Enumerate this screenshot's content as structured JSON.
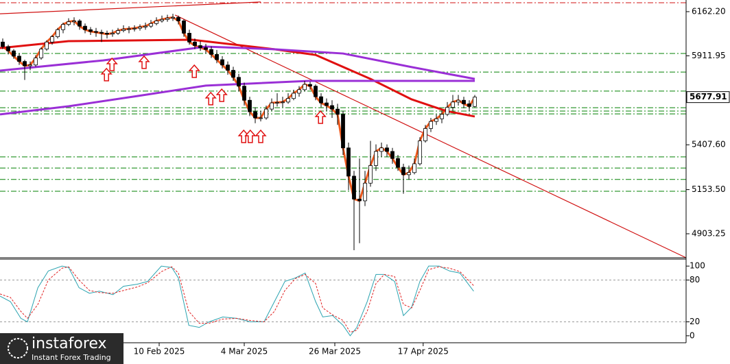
{
  "chart_data": {
    "type": "candlestick",
    "xlim": [
      -0.5,
      124.5
    ],
    "ylim": [
      4767.3,
      6228.3
    ],
    "yticks": [
      {
        "value": 6162.2,
        "label": "6162.20"
      },
      5911.95,
      {
        "value": 5407.6,
        "label": "5407.60"
      },
      {
        "value": 5153.5,
        "label": "5153.50"
      },
      4903.25
    ],
    "xticks": [
      {
        "value": 28.5,
        "label": "10 Feb 2025"
      },
      {
        "value": 44,
        "label": "4 Mar 2025"
      },
      {
        "value": 60.5,
        "label": "26 Mar 2025"
      },
      {
        "value": 76.6,
        "label": "17 Apr 2025"
      }
    ],
    "last_price": 5677.91,
    "candles": [
      [
        5990,
        6010,
        5950,
        5964
      ],
      [
        5964,
        5975,
        5920,
        5940
      ],
      [
        5940,
        5950,
        5895,
        5910
      ],
      [
        5910,
        5925,
        5860,
        5880
      ],
      [
        5880,
        5890,
        5775,
        5855
      ],
      [
        5855,
        5880,
        5830,
        5860
      ],
      [
        5860,
        5915,
        5850,
        5900
      ],
      [
        5900,
        5960,
        5890,
        5950
      ],
      [
        5950,
        6000,
        5940,
        5990
      ],
      [
        5990,
        6030,
        5975,
        6020
      ],
      [
        6020,
        6070,
        6010,
        6060
      ],
      [
        6060,
        6100,
        6040,
        6090
      ],
      [
        6090,
        6125,
        6080,
        6105
      ],
      [
        6105,
        6130,
        6085,
        6110
      ],
      [
        6110,
        6120,
        6060,
        6080
      ],
      [
        6080,
        6095,
        6040,
        6060
      ],
      [
        6060,
        6075,
        6030,
        6050
      ],
      [
        6050,
        6070,
        6020,
        6045
      ],
      [
        6045,
        6060,
        5990,
        6040
      ],
      [
        6040,
        6055,
        6010,
        6035
      ],
      [
        6035,
        6060,
        6020,
        6040
      ],
      [
        6040,
        6070,
        6030,
        6055
      ],
      [
        6055,
        6085,
        6045,
        6062
      ],
      [
        6062,
        6080,
        6040,
        6065
      ],
      [
        6065,
        6085,
        6050,
        6068
      ],
      [
        6068,
        6090,
        6055,
        6075
      ],
      [
        6075,
        6100,
        6060,
        6080
      ],
      [
        6080,
        6115,
        6070,
        6095
      ],
      [
        6095,
        6130,
        6085,
        6110
      ],
      [
        6110,
        6140,
        6100,
        6118
      ],
      [
        6118,
        6145,
        6105,
        6125
      ],
      [
        6125,
        6150,
        6110,
        6130
      ],
      [
        6130,
        6140,
        6090,
        6110
      ],
      [
        6110,
        6120,
        6020,
        6040
      ],
      [
        6040,
        6060,
        5975,
        5990
      ],
      [
        5990,
        6010,
        5950,
        5970
      ],
      [
        5970,
        5995,
        5940,
        5958
      ],
      [
        5958,
        5980,
        5925,
        5948
      ],
      [
        5948,
        5965,
        5900,
        5920
      ],
      [
        5920,
        5945,
        5870,
        5890
      ],
      [
        5890,
        5910,
        5840,
        5860
      ],
      [
        5860,
        5880,
        5805,
        5830
      ],
      [
        5830,
        5850,
        5770,
        5790
      ],
      [
        5790,
        5810,
        5710,
        5740
      ],
      [
        5740,
        5760,
        5630,
        5660
      ],
      [
        5660,
        5680,
        5570,
        5595
      ],
      [
        5595,
        5620,
        5530,
        5560
      ],
      [
        5560,
        5600,
        5540,
        5560
      ],
      [
        5560,
        5630,
        5550,
        5610
      ],
      [
        5610,
        5670,
        5600,
        5645
      ],
      [
        5645,
        5700,
        5625,
        5648
      ],
      [
        5648,
        5680,
        5620,
        5650
      ],
      [
        5650,
        5700,
        5640,
        5670
      ],
      [
        5670,
        5720,
        5660,
        5700
      ],
      [
        5700,
        5740,
        5680,
        5720
      ],
      [
        5720,
        5770,
        5710,
        5750
      ],
      [
        5750,
        5765,
        5720,
        5740
      ],
      [
        5740,
        5750,
        5660,
        5680
      ],
      [
        5680,
        5700,
        5620,
        5645
      ],
      [
        5645,
        5670,
        5600,
        5630
      ],
      [
        5630,
        5660,
        5560,
        5610
      ],
      [
        5610,
        5640,
        5520,
        5580
      ],
      [
        5580,
        5600,
        5350,
        5390
      ],
      [
        5390,
        5420,
        5150,
        5230
      ],
      [
        5230,
        5260,
        4810,
        5100
      ],
      [
        5100,
        5330,
        4850,
        5090
      ],
      [
        5090,
        5260,
        5060,
        5190
      ],
      [
        5190,
        5430,
        5170,
        5290
      ],
      [
        5290,
        5410,
        5260,
        5370
      ],
      [
        5370,
        5420,
        5340,
        5390
      ],
      [
        5390,
        5410,
        5340,
        5370
      ],
      [
        5370,
        5390,
        5300,
        5330
      ],
      [
        5330,
        5350,
        5260,
        5280
      ],
      [
        5280,
        5300,
        5130,
        5238
      ],
      [
        5238,
        5290,
        5210,
        5250
      ],
      [
        5250,
        5330,
        5240,
        5300
      ],
      [
        5300,
        5450,
        5290,
        5430
      ],
      [
        5430,
        5520,
        5420,
        5500
      ],
      [
        5500,
        5560,
        5480,
        5540
      ],
      [
        5540,
        5580,
        5520,
        5555
      ],
      [
        5555,
        5600,
        5530,
        5580
      ],
      [
        5580,
        5650,
        5570,
        5620
      ],
      [
        5620,
        5690,
        5600,
        5650
      ],
      [
        5650,
        5690,
        5630,
        5660
      ],
      [
        5660,
        5680,
        5615,
        5640
      ],
      [
        5640,
        5660,
        5600,
        5625
      ],
      [
        5625,
        5690,
        5620,
        5677.91
      ]
    ],
    "lines": [
      {
        "color": "#ee5a1e",
        "values": [
          5964,
          5940,
          5910,
          5880,
          5855,
          5860,
          5900,
          5950,
          5990,
          6020,
          6060,
          6090,
          6105,
          6110,
          6080,
          6060,
          6050,
          6045,
          6040,
          6035,
          6040,
          6055,
          6062,
          6065,
          6068,
          6075,
          6080,
          6095,
          6110,
          6118,
          6125,
          6130,
          6110,
          6040,
          5990,
          5970,
          5958,
          5948,
          5920,
          5890,
          5860,
          5830,
          5790,
          5740,
          5660,
          5595,
          5560,
          5560,
          5610,
          5645,
          5648,
          5650,
          5670,
          5700,
          5720,
          5750,
          5740,
          5680,
          5645,
          5630,
          5610,
          5580,
          5390,
          5230,
          5100,
          5090,
          5190,
          5290,
          5370,
          5390,
          5370,
          5330,
          5280,
          5238,
          5250,
          5300,
          5430,
          5500,
          5540,
          5555,
          5580,
          5620,
          5650,
          5660,
          5640,
          5625,
          5678
        ]
      },
      {
        "color": "#e01010",
        "x": [
          -0.5,
          12,
          34.5,
          49.5,
          57,
          67,
          74.5,
          80.8,
          86
        ],
        "values": [
          5956,
          5995,
          6003,
          5949,
          5917,
          5781,
          5665,
          5599,
          5568
        ]
      },
      {
        "color": "#9a2fd6",
        "x": [
          -0.5,
          18.3,
          37,
          49.5,
          62,
          74.5,
          86
        ],
        "values": [
          5828,
          5886,
          5964,
          5949,
          5925,
          5848,
          5781
        ]
      },
      {
        "color": "#9a2fd6",
        "x": [
          -0.5,
          12,
          24.5,
          37,
          55.8,
          74.5,
          86
        ],
        "values": [
          5580,
          5626,
          5684,
          5743,
          5770,
          5770,
          5770
        ]
      }
    ],
    "trend_lines": [
      {
        "color": "#d01010",
        "x": [
          31.4,
          124.5
        ],
        "values": [
          6143,
          4767.3
        ]
      },
      {
        "color": "#d01010",
        "x": [
          -0.5,
          47
        ],
        "values": [
          6150,
          6217
        ]
      }
    ],
    "levels": [
      {
        "value": 6213,
        "color": "#d01010"
      },
      {
        "value": 5925,
        "color": "#008000"
      },
      {
        "value": 5820,
        "color": "#008000"
      },
      {
        "value": 5712,
        "color": "#008000"
      },
      {
        "value": 5618,
        "color": "#008000"
      },
      {
        "value": 5599,
        "color": "#008000"
      },
      {
        "value": 5583,
        "color": "#008000"
      },
      {
        "value": 5339,
        "color": "#008000"
      },
      {
        "value": 5276,
        "color": "#008000"
      },
      {
        "value": 5211,
        "color": "#008000"
      },
      {
        "value": 5144,
        "color": "#008000"
      }
    ],
    "signals": [
      {
        "x": 18.9,
        "price": 5840
      },
      {
        "x": 19.9,
        "price": 5898
      },
      {
        "x": 25.75,
        "price": 5910
      },
      {
        "x": 34.9,
        "price": 5859
      },
      {
        "x": 37.9,
        "price": 5704
      },
      {
        "x": 39.9,
        "price": 5723
      },
      {
        "x": 43.9,
        "price": 5490
      },
      {
        "x": 45.1,
        "price": 5490
      },
      {
        "x": 47,
        "price": 5490
      },
      {
        "x": 57.9,
        "price": 5599
      }
    ],
    "oscillator": {
      "ylim": [
        -10,
        110
      ],
      "yticks": [
        100,
        80,
        20,
        0
      ],
      "levels": [
        80,
        20
      ],
      "x": [
        -0.5,
        1.4,
        3.3,
        4.5,
        6.4,
        8.3,
        10.8,
        12,
        13.9,
        15.8,
        17.6,
        20.1,
        22,
        24.5,
        26.4,
        28.9,
        30.8,
        32,
        33.9,
        35.8,
        37.6,
        40.1,
        42.6,
        45.1,
        47.6,
        49.5,
        51.4,
        53.3,
        55.1,
        57,
        58.3,
        60.1,
        62,
        63.3,
        64.5,
        66.4,
        68,
        69.5,
        71.4,
        73,
        74.5,
        76,
        77.6,
        79.5,
        81.4,
        83.3,
        85.8
      ],
      "series": [
        {
          "color": "#2aa3b0",
          "dashed": false,
          "values": [
            57,
            49,
            25,
            20,
            69,
            93,
            100,
            98,
            69,
            61,
            64,
            59,
            71,
            74,
            78,
            100,
            98,
            83,
            15,
            12,
            20,
            27,
            25,
            20,
            20,
            49,
            78,
            83,
            90,
            49,
            27,
            29,
            15,
            0,
            12,
            49,
            88,
            88,
            78,
            29,
            41,
            78,
            100,
            100,
            93,
            90,
            64
          ]
        },
        {
          "color": "#e02020",
          "dashed": true,
          "values": [
            60,
            55,
            35,
            25,
            45,
            80,
            97,
            99,
            80,
            65,
            62,
            61,
            65,
            70,
            76,
            92,
            99,
            90,
            35,
            18,
            18,
            24,
            25,
            22,
            20,
            35,
            65,
            82,
            88,
            75,
            40,
            30,
            22,
            5,
            8,
            35,
            75,
            88,
            85,
            45,
            40,
            65,
            95,
            99,
            97,
            92,
            72
          ]
        }
      ]
    }
  },
  "logo": {
    "name": "instaforex",
    "tagline": "Instant Forex Trading"
  }
}
